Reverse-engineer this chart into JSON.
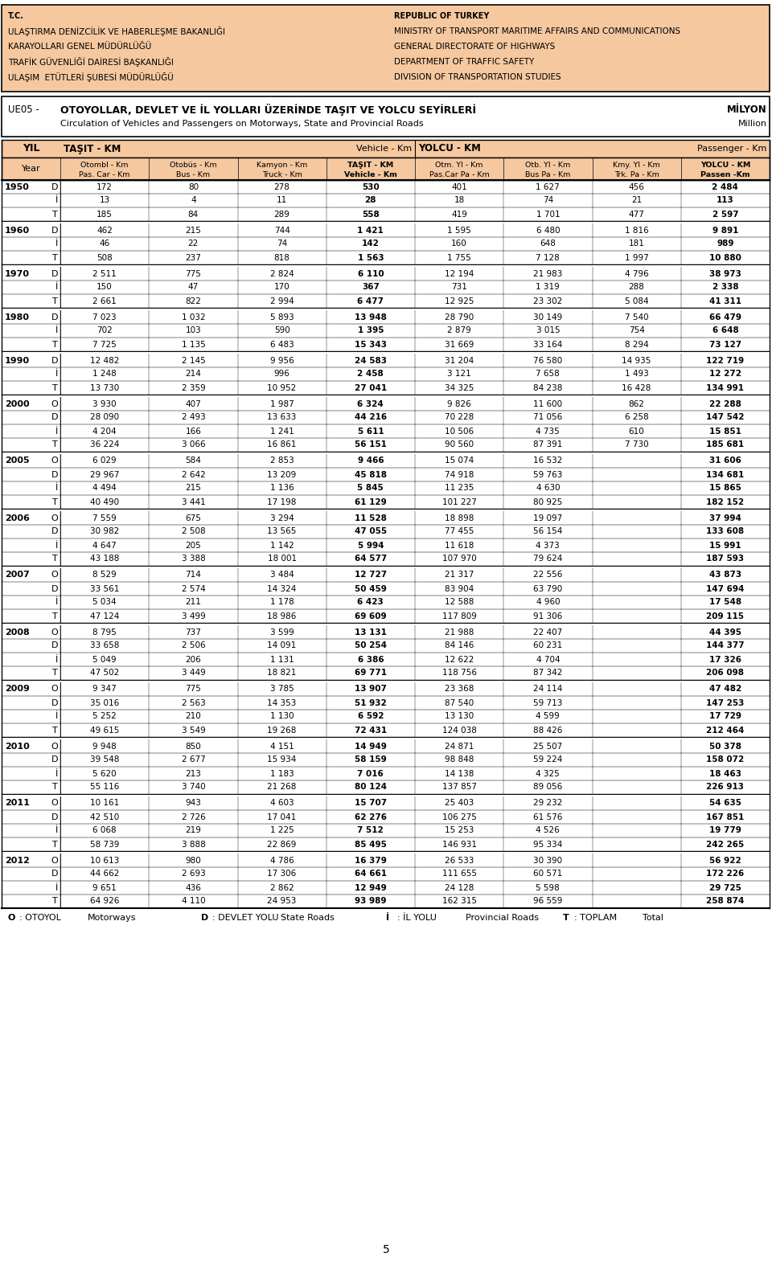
{
  "header_left": [
    "T.C.",
    "ULAŞTIRMA DENİZCİLİK VE HABERLEŞME BAKANLIĞI",
    "KARAYOLLARI GENEL MÜDÜRLÜĞÜ",
    "TRAFİK GÜVENLİĞİ DAİRESİ BAŞKANLIĞI",
    "ULAŞIM  ETÜTLERİ ŞUBESİ MÜDÜRLÜĞÜ"
  ],
  "header_right": [
    "REPUBLIC OF TURKEY",
    "MINISTRY OF TRANSPORT MARITIME AFFAIRS AND COMMUNICATIONS",
    "GENERAL DIRECTORATE OF HIGHWAYS",
    "DEPARTMENT OF TRAFFIC SAFETY",
    "DIVISION OF TRANSPORTATION STUDIES"
  ],
  "table_code": "UE05 -",
  "table_title_tr": "OTOYOLLAR, DEVLET VE İL YOLLARI ÜZERİNDE TAŞIT VE YOLCU SEYİRLERİ",
  "table_title_en": "Circulation of Vehicles and Passengers on Motorways, State and Provincial Roads",
  "unit_tr": "MİLYON",
  "unit_en": "Million",
  "header_bg": "#f5c8a0",
  "rows": [
    {
      "year": "1950",
      "type": "D",
      "c1": "172",
      "c2": "80",
      "c3": "278",
      "c4": "530",
      "c5": "401",
      "c6": "1 627",
      "c7": "456",
      "c8": "2 484"
    },
    {
      "year": "",
      "type": "İ",
      "c1": "13",
      "c2": "4",
      "c3": "11",
      "c4": "28",
      "c5": "18",
      "c6": "74",
      "c7": "21",
      "c8": "113"
    },
    {
      "year": "",
      "type": "T",
      "c1": "185",
      "c2": "84",
      "c3": "289",
      "c4": "558",
      "c5": "419",
      "c6": "1 701",
      "c7": "477",
      "c8": "2 597"
    },
    {
      "year": "1960",
      "type": "D",
      "c1": "462",
      "c2": "215",
      "c3": "744",
      "c4": "1 421",
      "c5": "1 595",
      "c6": "6 480",
      "c7": "1 816",
      "c8": "9 891"
    },
    {
      "year": "",
      "type": "İ",
      "c1": "46",
      "c2": "22",
      "c3": "74",
      "c4": "142",
      "c5": "160",
      "c6": "648",
      "c7": "181",
      "c8": "989"
    },
    {
      "year": "",
      "type": "T",
      "c1": "508",
      "c2": "237",
      "c3": "818",
      "c4": "1 563",
      "c5": "1 755",
      "c6": "7 128",
      "c7": "1 997",
      "c8": "10 880"
    },
    {
      "year": "1970",
      "type": "D",
      "c1": "2 511",
      "c2": "775",
      "c3": "2 824",
      "c4": "6 110",
      "c5": "12 194",
      "c6": "21 983",
      "c7": "4 796",
      "c8": "38 973"
    },
    {
      "year": "",
      "type": "İ",
      "c1": "150",
      "c2": "47",
      "c3": "170",
      "c4": "367",
      "c5": "731",
      "c6": "1 319",
      "c7": "288",
      "c8": "2 338"
    },
    {
      "year": "",
      "type": "T",
      "c1": "2 661",
      "c2": "822",
      "c3": "2 994",
      "c4": "6 477",
      "c5": "12 925",
      "c6": "23 302",
      "c7": "5 084",
      "c8": "41 311"
    },
    {
      "year": "1980",
      "type": "D",
      "c1": "7 023",
      "c2": "1 032",
      "c3": "5 893",
      "c4": "13 948",
      "c5": "28 790",
      "c6": "30 149",
      "c7": "7 540",
      "c8": "66 479"
    },
    {
      "year": "",
      "type": "İ",
      "c1": "702",
      "c2": "103",
      "c3": "590",
      "c4": "1 395",
      "c5": "2 879",
      "c6": "3 015",
      "c7": "754",
      "c8": "6 648"
    },
    {
      "year": "",
      "type": "T",
      "c1": "7 725",
      "c2": "1 135",
      "c3": "6 483",
      "c4": "15 343",
      "c5": "31 669",
      "c6": "33 164",
      "c7": "8 294",
      "c8": "73 127"
    },
    {
      "year": "1990",
      "type": "D",
      "c1": "12 482",
      "c2": "2 145",
      "c3": "9 956",
      "c4": "24 583",
      "c5": "31 204",
      "c6": "76 580",
      "c7": "14 935",
      "c8": "122 719"
    },
    {
      "year": "",
      "type": "İ",
      "c1": "1 248",
      "c2": "214",
      "c3": "996",
      "c4": "2 458",
      "c5": "3 121",
      "c6": "7 658",
      "c7": "1 493",
      "c8": "12 272"
    },
    {
      "year": "",
      "type": "T",
      "c1": "13 730",
      "c2": "2 359",
      "c3": "10 952",
      "c4": "27 041",
      "c5": "34 325",
      "c6": "84 238",
      "c7": "16 428",
      "c8": "134 991"
    },
    {
      "year": "2000",
      "type": "O",
      "c1": "3 930",
      "c2": "407",
      "c3": "1 987",
      "c4": "6 324",
      "c5": "9 826",
      "c6": "11 600",
      "c7": "862",
      "c8": "22 288"
    },
    {
      "year": "",
      "type": "D",
      "c1": "28 090",
      "c2": "2 493",
      "c3": "13 633",
      "c4": "44 216",
      "c5": "70 228",
      "c6": "71 056",
      "c7": "6 258",
      "c8": "147 542"
    },
    {
      "year": "",
      "type": "İ",
      "c1": "4 204",
      "c2": "166",
      "c3": "1 241",
      "c4": "5 611",
      "c5": "10 506",
      "c6": "4 735",
      "c7": "610",
      "c8": "15 851"
    },
    {
      "year": "",
      "type": "T",
      "c1": "36 224",
      "c2": "3 066",
      "c3": "16 861",
      "c4": "56 151",
      "c5": "90 560",
      "c6": "87 391",
      "c7": "7 730",
      "c8": "185 681"
    },
    {
      "year": "2005",
      "type": "O",
      "c1": "6 029",
      "c2": "584",
      "c3": "2 853",
      "c4": "9 466",
      "c5": "15 074",
      "c6": "16 532",
      "c7": "",
      "c8": "31 606"
    },
    {
      "year": "",
      "type": "D",
      "c1": "29 967",
      "c2": "2 642",
      "c3": "13 209",
      "c4": "45 818",
      "c5": "74 918",
      "c6": "59 763",
      "c7": "",
      "c8": "134 681"
    },
    {
      "year": "",
      "type": "İ",
      "c1": "4 494",
      "c2": "215",
      "c3": "1 136",
      "c4": "5 845",
      "c5": "11 235",
      "c6": "4 630",
      "c7": "",
      "c8": "15 865"
    },
    {
      "year": "",
      "type": "T",
      "c1": "40 490",
      "c2": "3 441",
      "c3": "17 198",
      "c4": "61 129",
      "c5": "101 227",
      "c6": "80 925",
      "c7": "",
      "c8": "182 152"
    },
    {
      "year": "2006",
      "type": "O",
      "c1": "7 559",
      "c2": "675",
      "c3": "3 294",
      "c4": "11 528",
      "c5": "18 898",
      "c6": "19 097",
      "c7": "",
      "c8": "37 994"
    },
    {
      "year": "",
      "type": "D",
      "c1": "30 982",
      "c2": "2 508",
      "c3": "13 565",
      "c4": "47 055",
      "c5": "77 455",
      "c6": "56 154",
      "c7": "",
      "c8": "133 608"
    },
    {
      "year": "",
      "type": "İ",
      "c1": "4 647",
      "c2": "205",
      "c3": "1 142",
      "c4": "5 994",
      "c5": "11 618",
      "c6": "4 373",
      "c7": "",
      "c8": "15 991"
    },
    {
      "year": "",
      "type": "T",
      "c1": "43 188",
      "c2": "3 388",
      "c3": "18 001",
      "c4": "64 577",
      "c5": "107 970",
      "c6": "79 624",
      "c7": "",
      "c8": "187 593"
    },
    {
      "year": "2007",
      "type": "O",
      "c1": "8 529",
      "c2": "714",
      "c3": "3 484",
      "c4": "12 727",
      "c5": "21 317",
      "c6": "22 556",
      "c7": "",
      "c8": "43 873"
    },
    {
      "year": "",
      "type": "D",
      "c1": "33 561",
      "c2": "2 574",
      "c3": "14 324",
      "c4": "50 459",
      "c5": "83 904",
      "c6": "63 790",
      "c7": "",
      "c8": "147 694"
    },
    {
      "year": "",
      "type": "İ",
      "c1": "5 034",
      "c2": "211",
      "c3": "1 178",
      "c4": "6 423",
      "c5": "12 588",
      "c6": "4 960",
      "c7": "",
      "c8": "17 548"
    },
    {
      "year": "",
      "type": "T",
      "c1": "47 124",
      "c2": "3 499",
      "c3": "18 986",
      "c4": "69 609",
      "c5": "117 809",
      "c6": "91 306",
      "c7": "",
      "c8": "209 115"
    },
    {
      "year": "2008",
      "type": "O",
      "c1": "8 795",
      "c2": "737",
      "c3": "3 599",
      "c4": "13 131",
      "c5": "21 988",
      "c6": "22 407",
      "c7": "",
      "c8": "44 395"
    },
    {
      "year": "",
      "type": "D",
      "c1": "33 658",
      "c2": "2 506",
      "c3": "14 091",
      "c4": "50 254",
      "c5": "84 146",
      "c6": "60 231",
      "c7": "",
      "c8": "144 377"
    },
    {
      "year": "",
      "type": "İ",
      "c1": "5 049",
      "c2": "206",
      "c3": "1 131",
      "c4": "6 386",
      "c5": "12 622",
      "c6": "4 704",
      "c7": "",
      "c8": "17 326"
    },
    {
      "year": "",
      "type": "T",
      "c1": "47 502",
      "c2": "3 449",
      "c3": "18 821",
      "c4": "69 771",
      "c5": "118 756",
      "c6": "87 342",
      "c7": "",
      "c8": "206 098"
    },
    {
      "year": "2009",
      "type": "O",
      "c1": "9 347",
      "c2": "775",
      "c3": "3 785",
      "c4": "13 907",
      "c5": "23 368",
      "c6": "24 114",
      "c7": "",
      "c8": "47 482"
    },
    {
      "year": "",
      "type": "D",
      "c1": "35 016",
      "c2": "2 563",
      "c3": "14 353",
      "c4": "51 932",
      "c5": "87 540",
      "c6": "59 713",
      "c7": "",
      "c8": "147 253"
    },
    {
      "year": "",
      "type": "İ",
      "c1": "5 252",
      "c2": "210",
      "c3": "1 130",
      "c4": "6 592",
      "c5": "13 130",
      "c6": "4 599",
      "c7": "",
      "c8": "17 729"
    },
    {
      "year": "",
      "type": "T",
      "c1": "49 615",
      "c2": "3 549",
      "c3": "19 268",
      "c4": "72 431",
      "c5": "124 038",
      "c6": "88 426",
      "c7": "",
      "c8": "212 464"
    },
    {
      "year": "2010",
      "type": "O",
      "c1": "9 948",
      "c2": "850",
      "c3": "4 151",
      "c4": "14 949",
      "c5": "24 871",
      "c6": "25 507",
      "c7": "",
      "c8": "50 378"
    },
    {
      "year": "",
      "type": "D",
      "c1": "39 548",
      "c2": "2 677",
      "c3": "15 934",
      "c4": "58 159",
      "c5": "98 848",
      "c6": "59 224",
      "c7": "",
      "c8": "158 072"
    },
    {
      "year": "",
      "type": "İ",
      "c1": "5 620",
      "c2": "213",
      "c3": "1 183",
      "c4": "7 016",
      "c5": "14 138",
      "c6": "4 325",
      "c7": "",
      "c8": "18 463"
    },
    {
      "year": "",
      "type": "T",
      "c1": "55 116",
      "c2": "3 740",
      "c3": "21 268",
      "c4": "80 124",
      "c5": "137 857",
      "c6": "89 056",
      "c7": "",
      "c8": "226 913"
    },
    {
      "year": "2011",
      "type": "O",
      "c1": "10 161",
      "c2": "943",
      "c3": "4 603",
      "c4": "15 707",
      "c5": "25 403",
      "c6": "29 232",
      "c7": "",
      "c8": "54 635"
    },
    {
      "year": "",
      "type": "D",
      "c1": "42 510",
      "c2": "2 726",
      "c3": "17 041",
      "c4": "62 276",
      "c5": "106 275",
      "c6": "61 576",
      "c7": "",
      "c8": "167 851"
    },
    {
      "year": "",
      "type": "İ",
      "c1": "6 068",
      "c2": "219",
      "c3": "1 225",
      "c4": "7 512",
      "c5": "15 253",
      "c6": "4 526",
      "c7": "",
      "c8": "19 779"
    },
    {
      "year": "",
      "type": "T",
      "c1": "58 739",
      "c2": "3 888",
      "c3": "22 869",
      "c4": "85 495",
      "c5": "146 931",
      "c6": "95 334",
      "c7": "",
      "c8": "242 265"
    },
    {
      "year": "2012",
      "type": "O",
      "c1": "10 613",
      "c2": "980",
      "c3": "4 786",
      "c4": "16 379",
      "c5": "26 533",
      "c6": "30 390",
      "c7": "",
      "c8": "56 922"
    },
    {
      "year": "",
      "type": "D",
      "c1": "44 662",
      "c2": "2 693",
      "c3": "17 306",
      "c4": "64 661",
      "c5": "111 655",
      "c6": "60 571",
      "c7": "",
      "c8": "172 226"
    },
    {
      "year": "",
      "type": "İ",
      "c1": "9 651",
      "c2": "436",
      "c3": "2 862",
      "c4": "12 949",
      "c5": "24 128",
      "c6": "5 598",
      "c7": "",
      "c8": "29 725"
    },
    {
      "year": "",
      "type": "T",
      "c1": "64 926",
      "c2": "4 110",
      "c3": "24 953",
      "c4": "93 989",
      "c5": "162 315",
      "c6": "96 559",
      "c7": "",
      "c8": "258 874"
    }
  ],
  "legend": [
    {
      "code": "O",
      "tr": ": OTOYOL",
      "en": "Motorways"
    },
    {
      "code": "D",
      "tr": ": DEVLET YOLU",
      "en": "State Roads"
    },
    {
      "code": "İ",
      "tr": ": İL YOLU",
      "en": "Provincial Roads"
    },
    {
      "code": "T",
      "tr": ": TOPLAM",
      "en": "Total"
    }
  ],
  "page_number": "5"
}
